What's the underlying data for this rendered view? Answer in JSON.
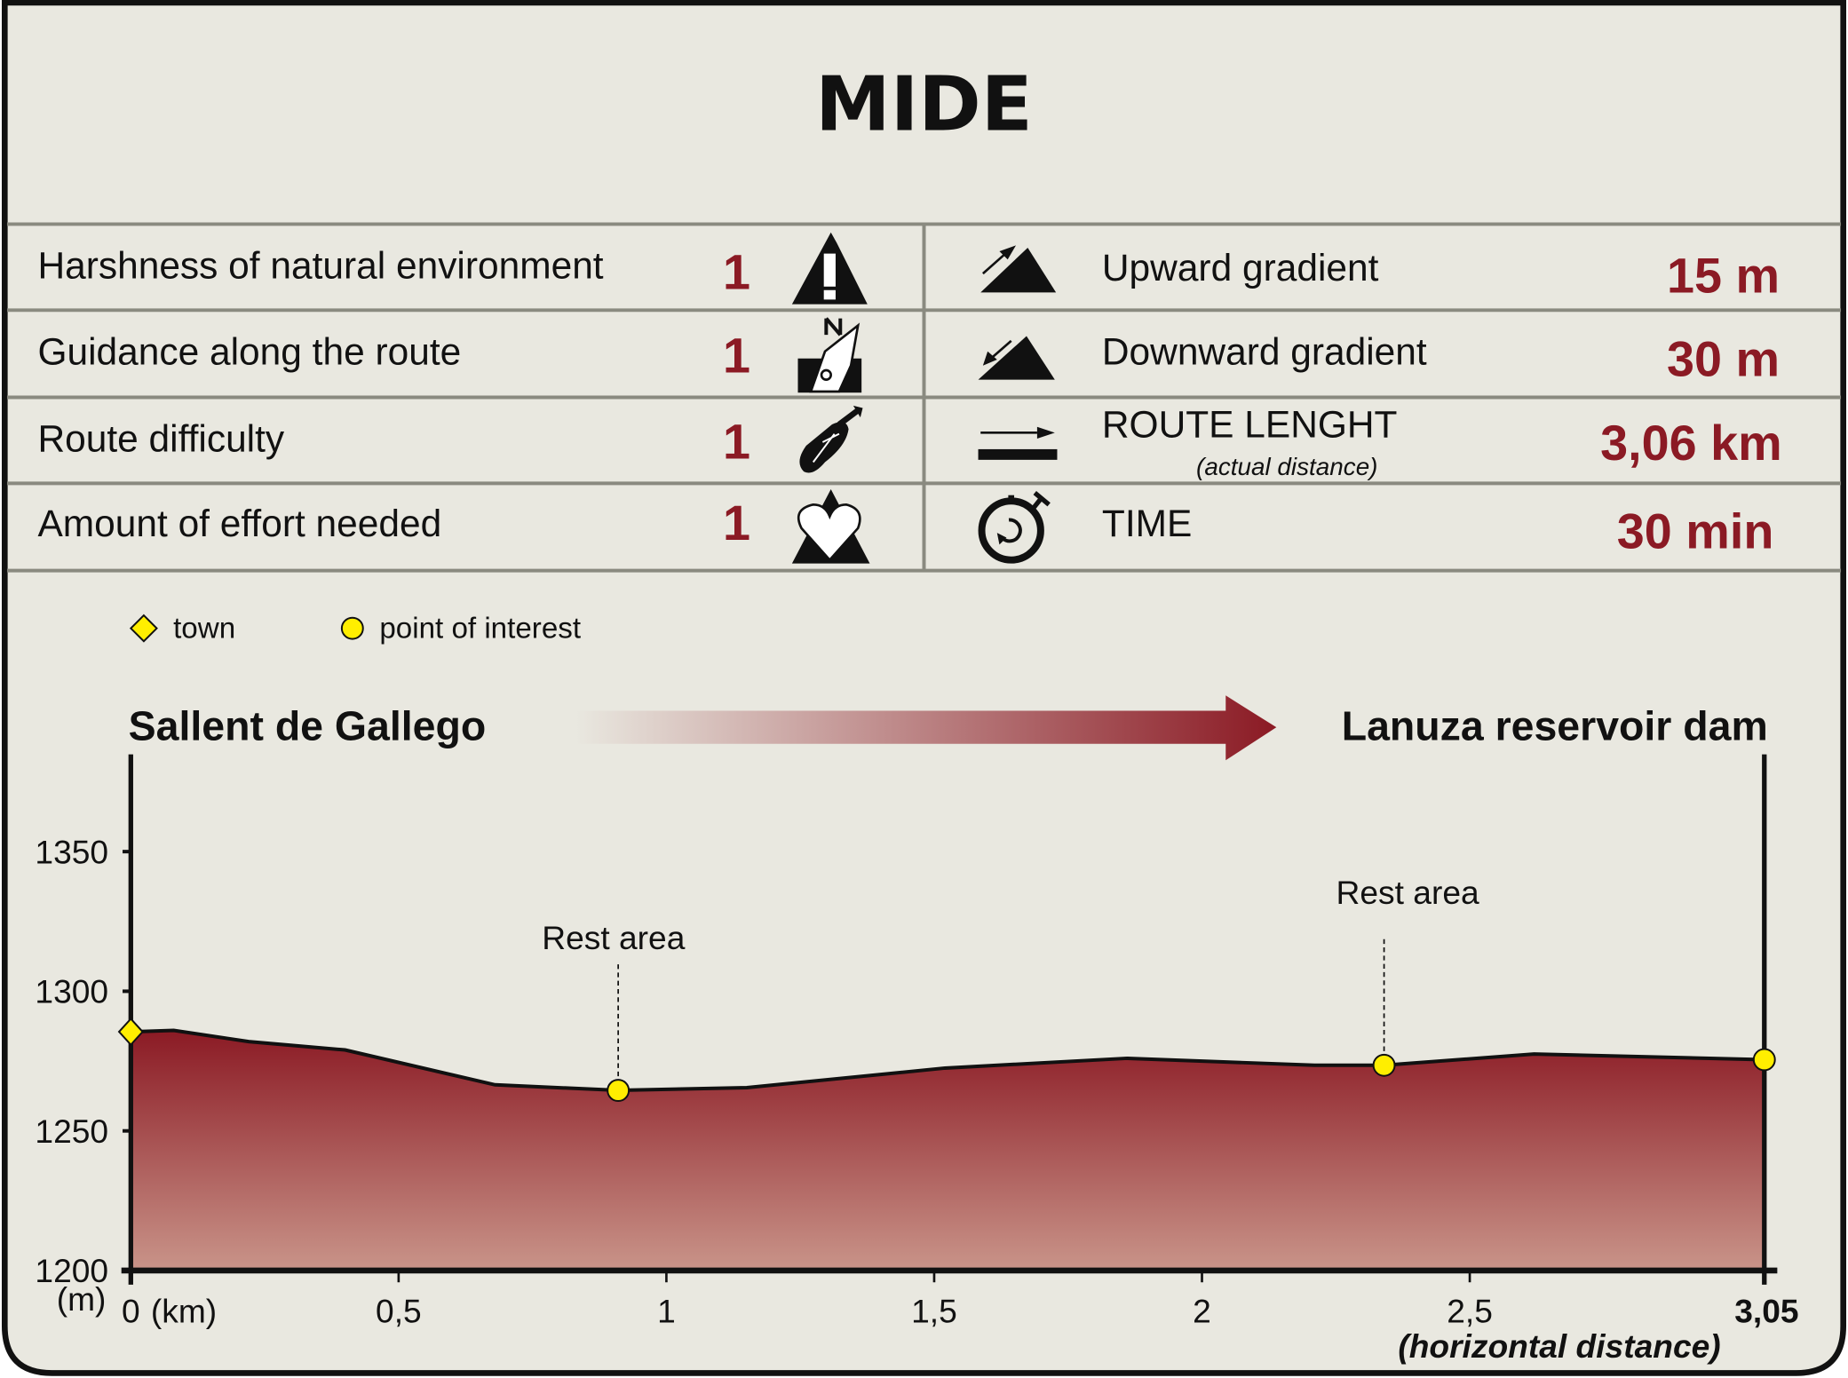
{
  "title": "MIDE",
  "colors": {
    "background": "#e9e8e0",
    "accent": "#8b1a24",
    "grid": "#8a8a80",
    "marker": "#ffee00"
  },
  "mide_rows": [
    {
      "label": "Harshness of natural environment",
      "value": "1",
      "icon": "mountain-warning-icon"
    },
    {
      "label": "Guidance along the route",
      "value": "1",
      "icon": "compass-north-icon"
    },
    {
      "label": "Route difficulty",
      "value": "1",
      "icon": "boot-print-icon"
    },
    {
      "label": "Amount of effort needed",
      "value": "1",
      "icon": "heart-mountain-icon"
    }
  ],
  "stats": [
    {
      "label": "Upward gradient",
      "sub": "",
      "value": "15 m",
      "icon": "upward-gradient-icon"
    },
    {
      "label": "Downward gradient",
      "sub": "",
      "value": "30 m",
      "icon": "downward-gradient-icon"
    },
    {
      "label": "ROUTE LENGHT",
      "sub": "(actual distance)",
      "value": "3,06 km",
      "icon": "route-length-icon"
    },
    {
      "label": "TIME",
      "sub": "",
      "value": "30 min",
      "icon": "stopwatch-icon"
    }
  ],
  "legend": {
    "town": "town",
    "poi": "point of interest"
  },
  "route": {
    "start": "Sallent de Gallego",
    "end": "Lanuza reservoir dam"
  },
  "chart_data": {
    "type": "area",
    "xlabel_unit": "(km)",
    "ylabel_unit": "(m)",
    "x_note": "(horizontal distance)",
    "xlim": [
      0,
      3.05
    ],
    "ylim": [
      1200,
      1380
    ],
    "x_ticks": [
      "0",
      "0,5",
      "1",
      "1,5",
      "2",
      "2,5",
      "3,05"
    ],
    "x_tick_values": [
      0,
      0.5,
      1,
      1.5,
      2,
      2.5,
      3.05
    ],
    "y_ticks": [
      "1350",
      "1300",
      "1250",
      "1200"
    ],
    "y_tick_values": [
      1350,
      1300,
      1250,
      1200
    ],
    "profile": {
      "x": [
        0,
        0.08,
        0.22,
        0.4,
        0.68,
        0.91,
        1.15,
        1.52,
        1.86,
        2.21,
        2.34,
        2.62,
        3.05
      ],
      "y": [
        1285.5,
        1286,
        1282,
        1279,
        1266.5,
        1264.5,
        1265.5,
        1272.5,
        1276,
        1273.5,
        1273.5,
        1277.5,
        1275.5
      ]
    },
    "markers": [
      {
        "type": "town",
        "x": 0,
        "y": 1285.5,
        "label": ""
      },
      {
        "type": "poi",
        "x": 0.91,
        "y": 1264.5,
        "label": "Rest area"
      },
      {
        "type": "poi",
        "x": 2.34,
        "y": 1273.5,
        "label": "Rest area"
      },
      {
        "type": "poi",
        "x": 3.05,
        "y": 1275.5,
        "label": ""
      }
    ]
  }
}
